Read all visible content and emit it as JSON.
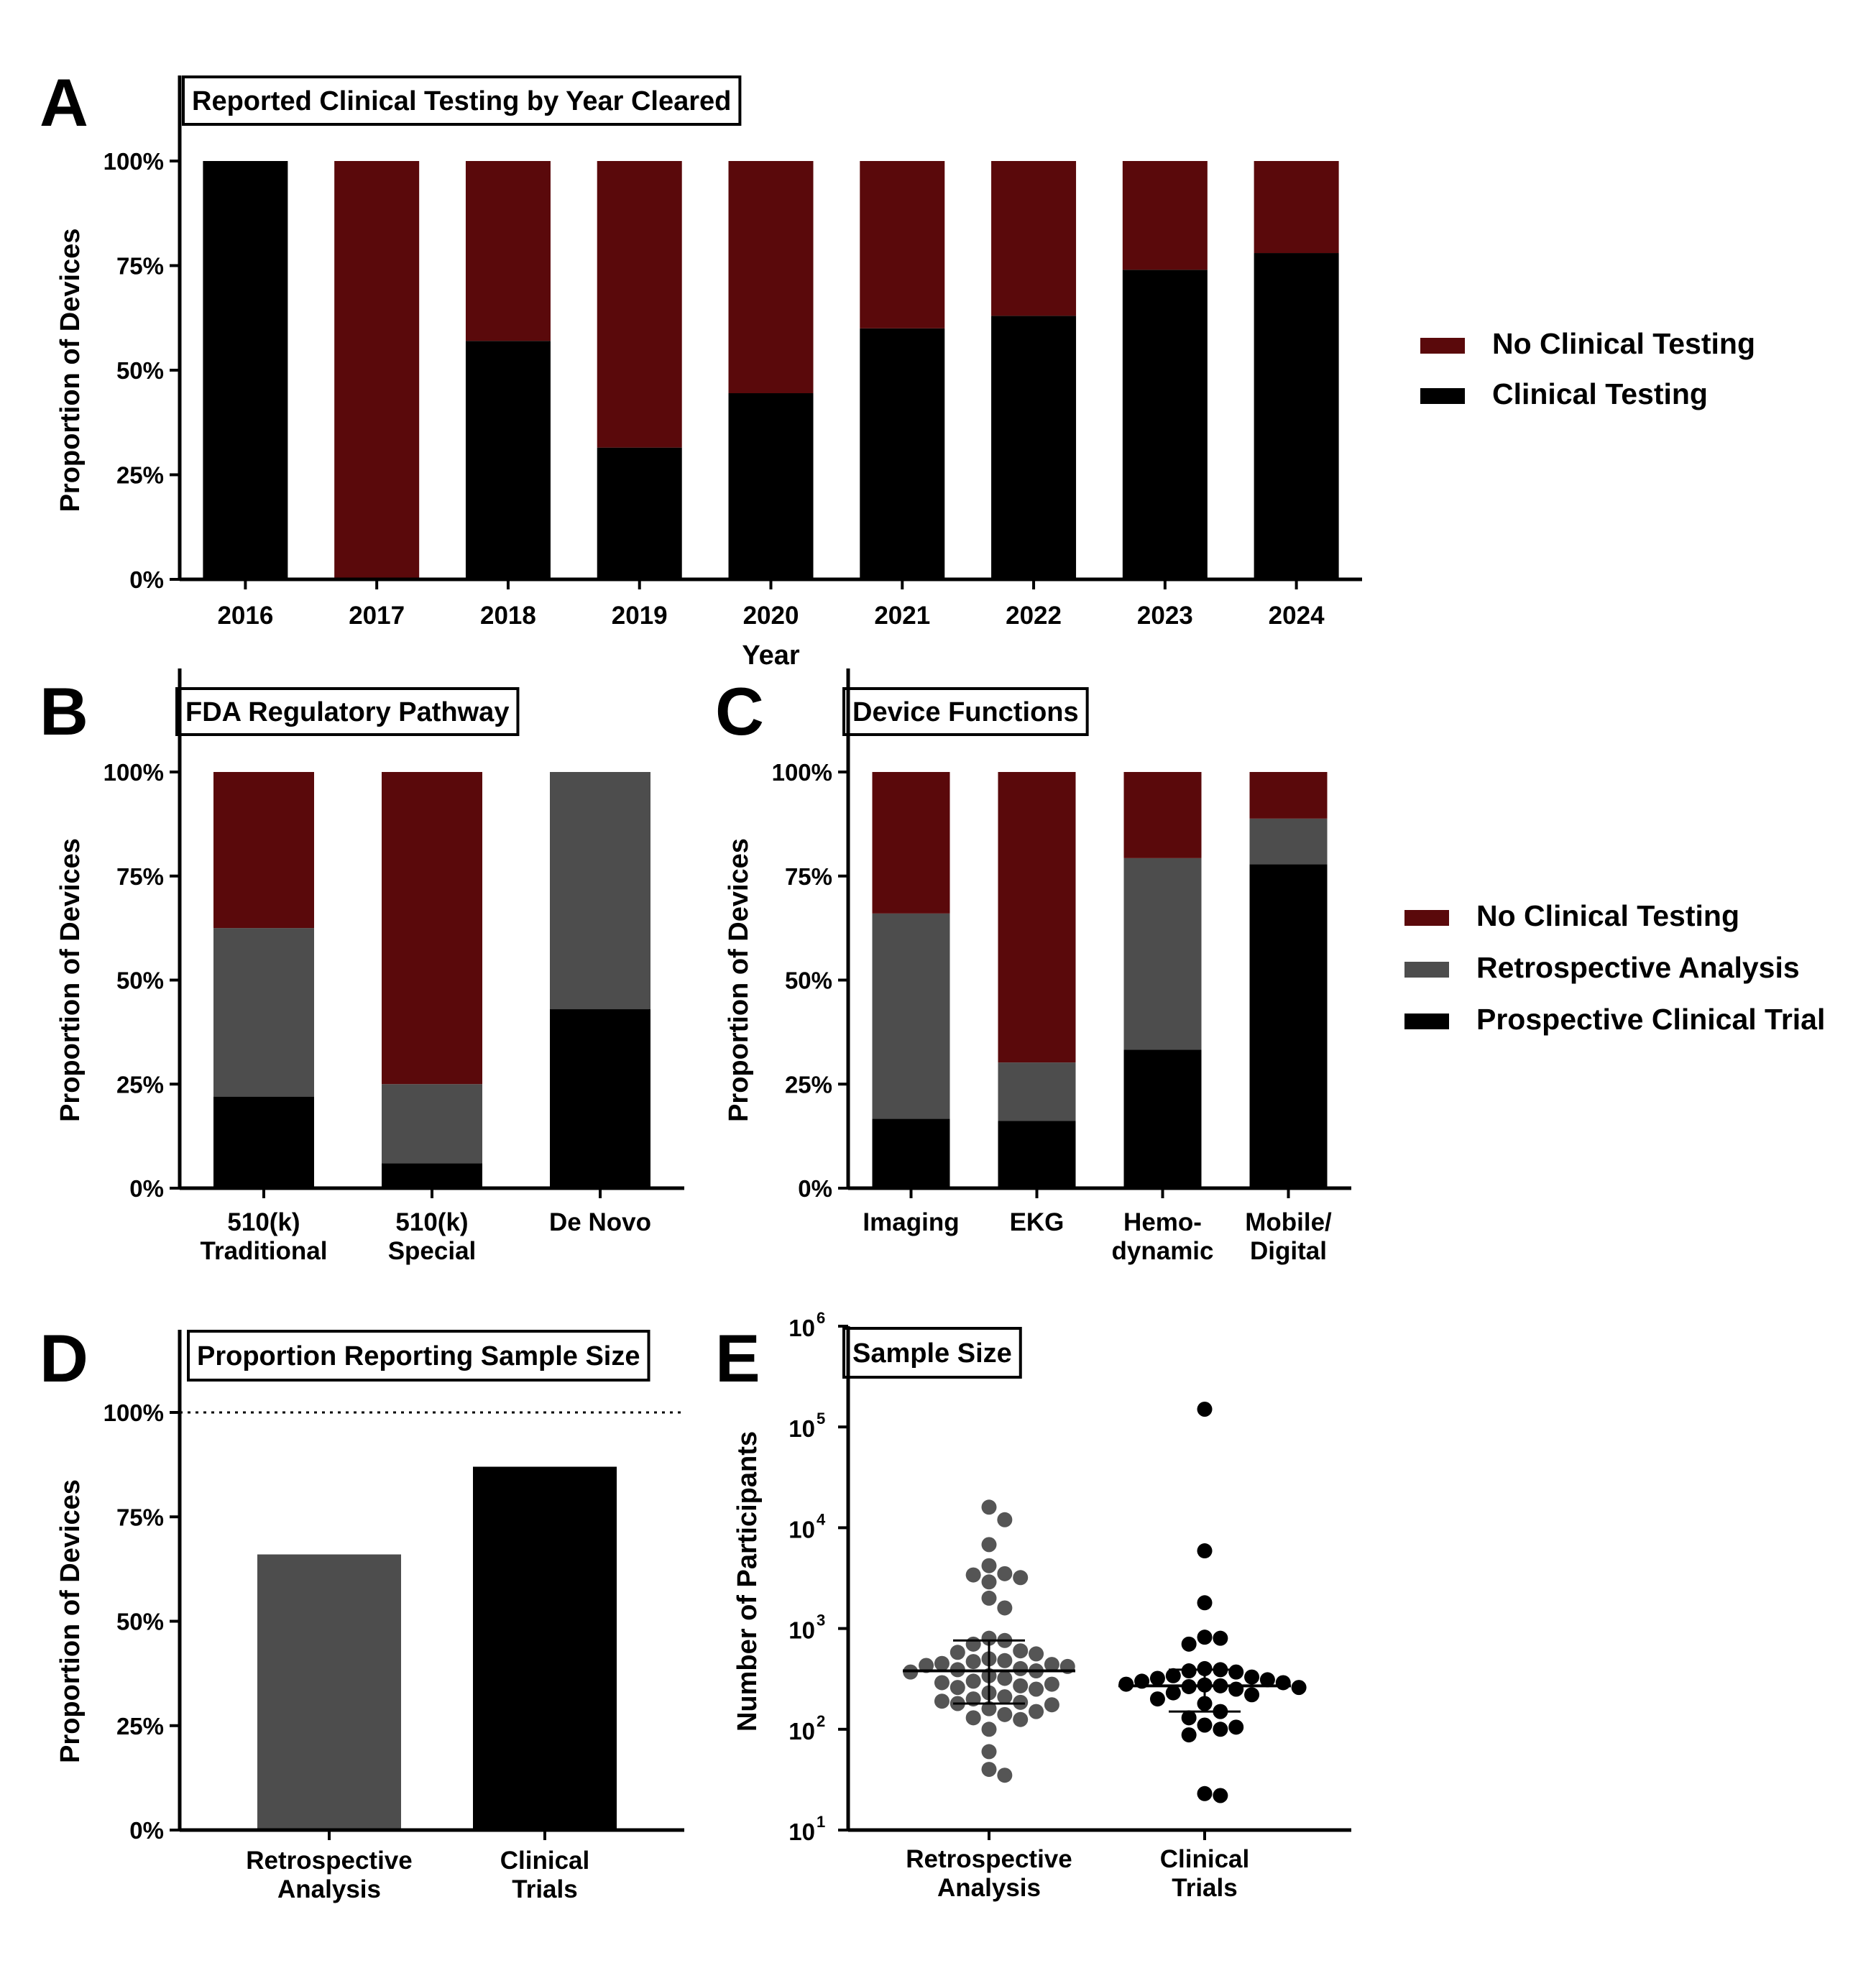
{
  "colors": {
    "no_clinical": "#5a090b",
    "retrospective": "#4d4d4d",
    "clinical": "#000000",
    "dot_retro": "#555555",
    "dot_clinical": "#000000"
  },
  "chart_data": [
    {
      "id": "A",
      "letter": "A",
      "type": "bar",
      "stacked": true,
      "title": "Reported Clinical Testing by Year Cleared",
      "xlabel": "Year",
      "ylabel": "Proportion of Devices",
      "yticks": [
        "0%",
        "25%",
        "50%",
        "75%",
        "100%"
      ],
      "ylim": [
        0,
        1
      ],
      "categories": [
        "2016",
        "2017",
        "2018",
        "2019",
        "2020",
        "2021",
        "2022",
        "2023",
        "2024"
      ],
      "series": [
        {
          "name": "Clinical Testing",
          "color_key": "clinical",
          "values": [
            1.0,
            0.0,
            0.57,
            0.315,
            0.445,
            0.6,
            0.63,
            0.74,
            0.78
          ]
        },
        {
          "name": "No Clinical Testing",
          "color_key": "no_clinical",
          "values": [
            0.0,
            1.0,
            0.43,
            0.685,
            0.555,
            0.4,
            0.37,
            0.26,
            0.22
          ]
        }
      ],
      "legend": [
        {
          "label": "No Clinical Testing",
          "color_key": "no_clinical"
        },
        {
          "label": "Clinical Testing",
          "color_key": "clinical"
        }
      ]
    },
    {
      "id": "B",
      "letter": "B",
      "type": "bar",
      "stacked": true,
      "title": "FDA Regulatory Pathway",
      "ylabel": "Proportion of Devices",
      "yticks": [
        "0%",
        "25%",
        "50%",
        "75%",
        "100%"
      ],
      "ylim": [
        0,
        1
      ],
      "categories": [
        [
          "510(k)",
          "Traditional"
        ],
        [
          "510(k)",
          "Special"
        ],
        [
          "De Novo"
        ]
      ],
      "series": [
        {
          "name": "Prospective Clinical Trial",
          "color_key": "clinical",
          "values": [
            0.22,
            0.06,
            0.43
          ]
        },
        {
          "name": "Retrospective Analysis",
          "color_key": "retrospective",
          "values": [
            0.405,
            0.19,
            0.57
          ]
        },
        {
          "name": "No Clinical Testing",
          "color_key": "no_clinical",
          "values": [
            0.375,
            0.75,
            0.0
          ]
        }
      ]
    },
    {
      "id": "C",
      "letter": "C",
      "type": "bar",
      "stacked": true,
      "title": "Device Functions",
      "ylabel": "Proportion of Devices",
      "yticks": [
        "0%",
        "25%",
        "50%",
        "75%",
        "100%"
      ],
      "ylim": [
        0,
        1
      ],
      "categories": [
        [
          "Imaging"
        ],
        [
          "EKG"
        ],
        [
          "Hemo-",
          "dynamic"
        ],
        [
          "Mobile/",
          "Digital"
        ]
      ],
      "series": [
        {
          "name": "Prospective Clinical Trial",
          "color_key": "clinical",
          "values": [
            0.167,
            0.162,
            0.333,
            0.778
          ]
        },
        {
          "name": "Retrospective Analysis",
          "color_key": "retrospective",
          "values": [
            0.493,
            0.14,
            0.46,
            0.11
          ]
        },
        {
          "name": "No Clinical Testing",
          "color_key": "no_clinical",
          "values": [
            0.34,
            0.698,
            0.207,
            0.112
          ]
        }
      ],
      "legend": [
        {
          "label": "No Clinical Testing",
          "color_key": "no_clinical"
        },
        {
          "label": "Retrospective Analysis",
          "color_key": "retrospective"
        },
        {
          "label": "Prospective Clinical Trial",
          "color_key": "clinical"
        }
      ]
    },
    {
      "id": "D",
      "letter": "D",
      "type": "bar",
      "title": "Proportion Reporting Sample Size",
      "ylabel": "Proportion of Devices",
      "yticks": [
        "0%",
        "25%",
        "50%",
        "75%",
        "100%"
      ],
      "ylim": [
        0,
        1.1
      ],
      "reference_line": 1.0,
      "categories": [
        [
          "Retrospective",
          "Analysis"
        ],
        [
          "Clinical",
          "Trials"
        ]
      ],
      "values": [
        0.66,
        0.87
      ],
      "color_keys": [
        "retrospective",
        "clinical"
      ]
    },
    {
      "id": "E",
      "letter": "E",
      "type": "scatter",
      "title": "Sample Size",
      "ylabel": "Number of Participants",
      "yscale": "log",
      "ylim": [
        10,
        1000000
      ],
      "ytick_exponents": [
        "1",
        "2",
        "3",
        "4",
        "5",
        "6"
      ],
      "ytick_base": "10",
      "categories": [
        [
          "Retrospective",
          "Analysis"
        ],
        [
          "Clinical",
          "Trials"
        ]
      ],
      "groups": [
        {
          "color_key": "dot_retro",
          "median": 380,
          "q1": 180,
          "q3": 760,
          "values": [
            16000,
            12000,
            6800,
            4200,
            3500,
            3400,
            3200,
            2900,
            2000,
            1600,
            800,
            760,
            700,
            600,
            580,
            560,
            500,
            480,
            470,
            450,
            440,
            430,
            420,
            400,
            390,
            380,
            370,
            340,
            320,
            300,
            290,
            280,
            270,
            260,
            250,
            230,
            210,
            200,
            190,
            185,
            180,
            175,
            160,
            150,
            140,
            130,
            125,
            100,
            60,
            40,
            35
          ]
        },
        {
          "color_key": "dot_clinical",
          "median": 270,
          "q1": 150,
          "q3": 390,
          "values": [
            150000,
            5900,
            1800,
            820,
            800,
            700,
            400,
            390,
            380,
            370,
            340,
            330,
            320,
            310,
            300,
            290,
            280,
            275,
            270,
            265,
            260,
            250,
            230,
            220,
            200,
            180,
            150,
            130,
            110,
            105,
            100,
            88,
            23,
            22
          ]
        }
      ]
    }
  ]
}
